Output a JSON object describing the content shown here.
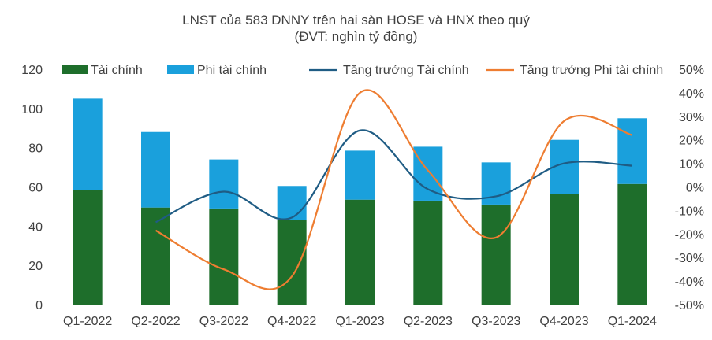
{
  "chart_data": {
    "type": "bar",
    "title": "LNST của 583 DNNY trên hai sàn HOSE và HNX theo quý",
    "subtitle": "(ĐVT: nghìn tỷ đồng)",
    "categories": [
      "Q1-2022",
      "Q2-2022",
      "Q3-2022",
      "Q4-2022",
      "Q1-2023",
      "Q2-2023",
      "Q3-2023",
      "Q4-2023",
      "Q1-2024"
    ],
    "stacked": true,
    "ylim": [
      0,
      120
    ],
    "yticks": [
      "0",
      "20",
      "40",
      "60",
      "80",
      "100",
      "120"
    ],
    "y2lim": [
      -50,
      50
    ],
    "y2ticks": [
      "-50%",
      "-40%",
      "-30%",
      "-20%",
      "-10%",
      "0%",
      "10%",
      "20%",
      "30%",
      "40%",
      "50%"
    ],
    "legend_position": "top",
    "series": [
      {
        "name": "Tài chính",
        "kind": "bar",
        "color": "#1E6E2B",
        "values": [
          58.5,
          49.5,
          49,
          43,
          53.5,
          53,
          51,
          56.5,
          61.5
        ]
      },
      {
        "name": "Phi tài chính",
        "kind": "bar",
        "color": "#1AA0DC",
        "values": [
          46.5,
          38.5,
          25,
          17.5,
          25,
          27.5,
          21.5,
          27.5,
          33.5
        ]
      },
      {
        "name": "Tăng trưởng Tài chính",
        "kind": "line",
        "axis": "secondary",
        "color": "#1F5C84",
        "values": [
          null,
          -15,
          -2,
          -13,
          24,
          -1,
          -4,
          10,
          9
        ]
      },
      {
        "name": "Tăng trưởng Phi tài chính",
        "kind": "line",
        "axis": "secondary",
        "color": "#EE7D31",
        "values": [
          null,
          -18.5,
          -35,
          -38,
          40,
          7,
          -21.5,
          28,
          22
        ]
      }
    ]
  }
}
